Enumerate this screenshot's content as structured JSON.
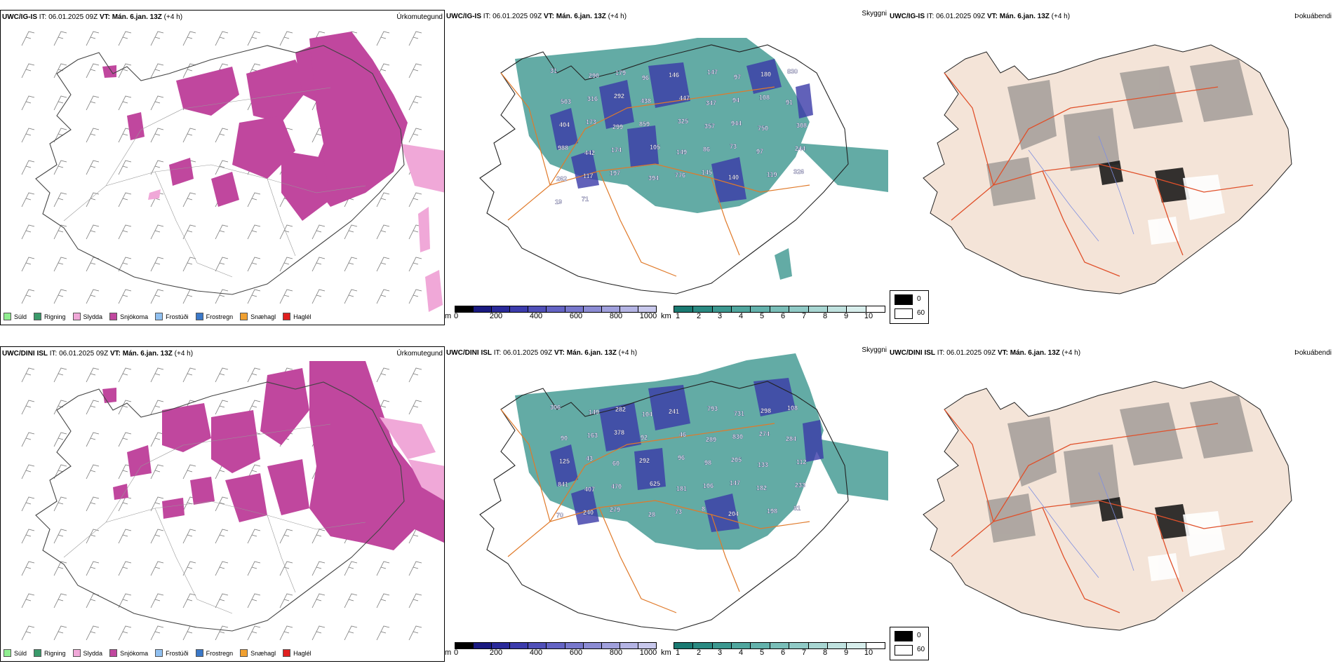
{
  "rows": [
    {
      "model": "UWC/IG-IS",
      "it_label": "IT:",
      "it_value": "06.01.2025 09Z",
      "vt_label": "VT:",
      "vt_value": "Mán. 6.jan. 13Z",
      "lead": "(+4 h)"
    },
    {
      "model": "UWC/DINI ISL",
      "it_label": "IT:",
      "it_value": "06.01.2025 09Z",
      "vt_label": "VT:",
      "vt_value": "Mán. 6.jan. 13Z",
      "lead": "(+4 h)"
    }
  ],
  "panels": {
    "precip_type": "Úrkomutegund",
    "cloud_base": "Skyggni",
    "fog": "Þokuábendi"
  },
  "precip_legend": [
    {
      "label": "Súld",
      "color": "#90ee90"
    },
    {
      "label": "Rigning",
      "color": "#3a9a6a"
    },
    {
      "label": "Slydda",
      "color": "#f0a8d8"
    },
    {
      "label": "Snjókoma",
      "color": "#c0479e"
    },
    {
      "label": "Frostúði",
      "color": "#90c0f0"
    },
    {
      "label": "Frostregn",
      "color": "#3a78c8"
    },
    {
      "label": "Snæhagl",
      "color": "#f0a030"
    },
    {
      "label": "Haglél",
      "color": "#e02020"
    }
  ],
  "cbar_m": {
    "unit": "m",
    "ticks": [
      "0",
      "200",
      "400",
      "600",
      "800",
      "1000"
    ],
    "colors": [
      "#000000",
      "#1a1a80",
      "#2a2a9a",
      "#3c3cac",
      "#5050b8",
      "#6464c4",
      "#7878cc",
      "#8c8cd4",
      "#a0a0dc",
      "#b4b4e4",
      "#c8c8ec"
    ]
  },
  "cbar_km": {
    "unit": "km",
    "ticks": [
      "1",
      "2",
      "3",
      "4",
      "5",
      "6",
      "7",
      "8",
      "9",
      "10"
    ],
    "colors": [
      "#1a7a72",
      "#2a8a82",
      "#3c9890",
      "#50a69e",
      "#64b2ac",
      "#7abeb8",
      "#90cac6",
      "#a8d6d2",
      "#c0e2df",
      "#d8eeec",
      "#ffffff"
    ]
  },
  "vis_legend": {
    "black_label": "0",
    "white_label": "60"
  },
  "cloud_labels_top": [
    "31",
    "290",
    "179",
    "96",
    "146",
    "147",
    "97",
    "180",
    "830",
    "503",
    "316",
    "292",
    "438",
    "447",
    "347",
    "94",
    "108",
    "91",
    "404",
    "173",
    "299",
    "859",
    "325",
    "357",
    "944",
    "750",
    "308",
    "988",
    "442",
    "174",
    "105",
    "149",
    "86",
    "73",
    "97",
    "244",
    "262",
    "117",
    "197",
    "394",
    "776",
    "145",
    "140",
    "119",
    "326",
    "19",
    "71"
  ],
  "cloud_labels_bottom": [
    "306",
    "149",
    "282",
    "104",
    "241",
    "793",
    "731",
    "298",
    "108",
    "90",
    "163",
    "378",
    "92",
    "46",
    "289",
    "830",
    "274",
    "284",
    "125",
    "43",
    "60",
    "292",
    "96",
    "98",
    "205",
    "133",
    "112",
    "841",
    "407",
    "470",
    "625",
    "181",
    "106",
    "147",
    "182",
    "233",
    "70",
    "240",
    "279",
    "28",
    "73",
    "8",
    "204",
    "198",
    "81"
  ],
  "colors": {
    "snow": "#c0479e",
    "sleet": "#f0a8d8",
    "teal": "#2f8f87",
    "road": "#e07a2a",
    "fogroad": "#e0502a",
    "land": "#f4e4d8"
  }
}
